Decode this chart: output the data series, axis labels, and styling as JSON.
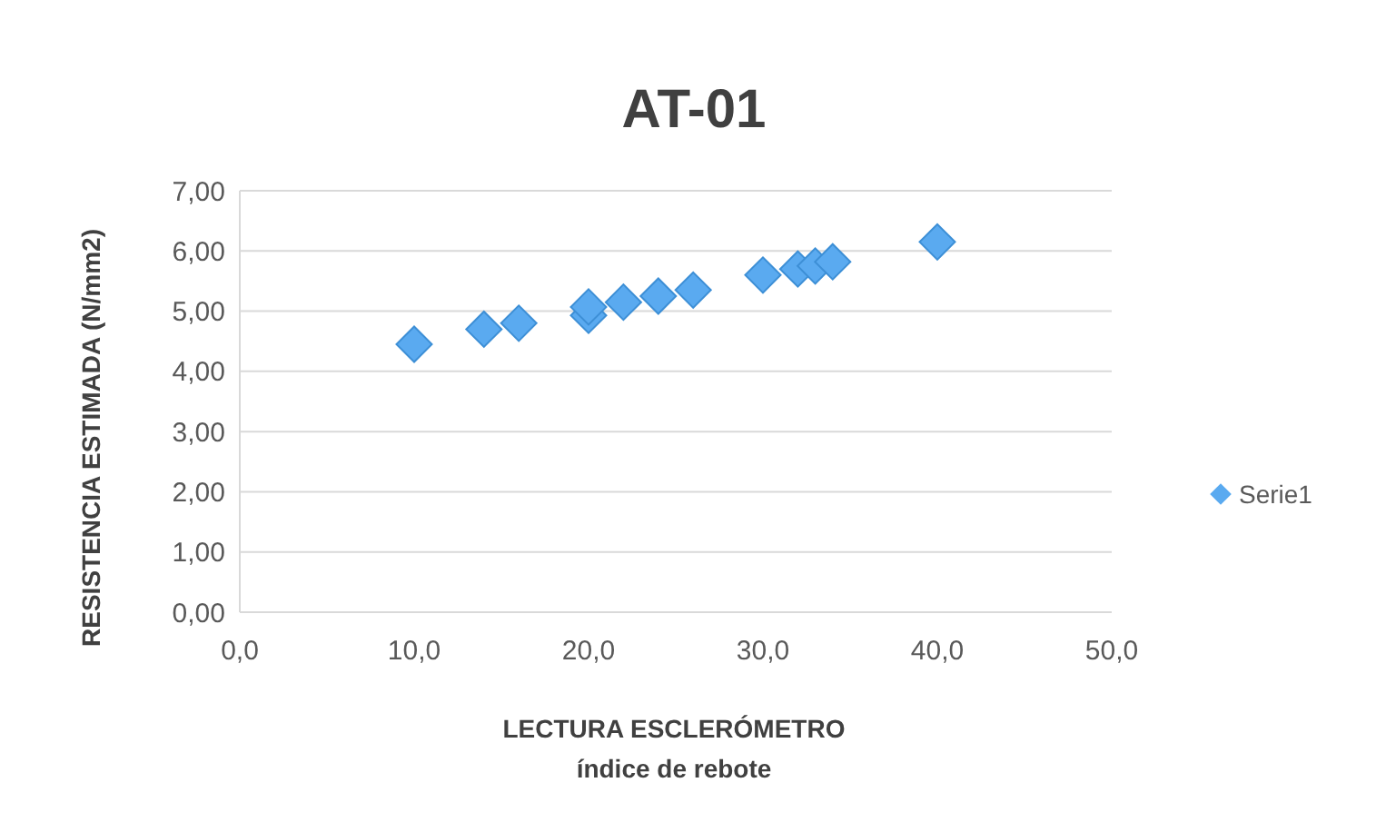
{
  "chart_data": {
    "type": "scatter",
    "title": "AT-01",
    "xlabel": "LECTURA ESCLERÓMETRO\níndice de rebote",
    "ylabel": "RESISTENCIA ESTIMADA (N/mm2)",
    "xlim": [
      0,
      50
    ],
    "xticks": [
      {
        "value": 0,
        "label": "0,0"
      },
      {
        "value": 10,
        "label": "10,0"
      },
      {
        "value": 20,
        "label": "20,0"
      },
      {
        "value": 30,
        "label": "30,0"
      },
      {
        "value": 40,
        "label": "40,0"
      },
      {
        "value": 50,
        "label": "50,0"
      }
    ],
    "ylim": [
      0,
      7
    ],
    "yticks": [
      {
        "value": 0,
        "label": "0,00"
      },
      {
        "value": 1,
        "label": "1,00"
      },
      {
        "value": 2,
        "label": "2,00"
      },
      {
        "value": 3,
        "label": "3,00"
      },
      {
        "value": 4,
        "label": "4,00"
      },
      {
        "value": 5,
        "label": "5,00"
      },
      {
        "value": 6,
        "label": "6,00"
      },
      {
        "value": 7,
        "label": "7,00"
      }
    ],
    "grid": "y",
    "legend": "right",
    "marker": "diamond",
    "series": [
      {
        "name": "Serie1",
        "color": "#5aaaf0",
        "x": [
          10,
          14,
          16,
          20,
          20,
          22,
          24,
          26,
          30,
          32,
          33,
          34,
          40
        ],
        "values": [
          4.45,
          4.7,
          4.8,
          4.93,
          5.07,
          5.15,
          5.25,
          5.35,
          5.6,
          5.7,
          5.75,
          5.82,
          6.15
        ]
      }
    ]
  }
}
